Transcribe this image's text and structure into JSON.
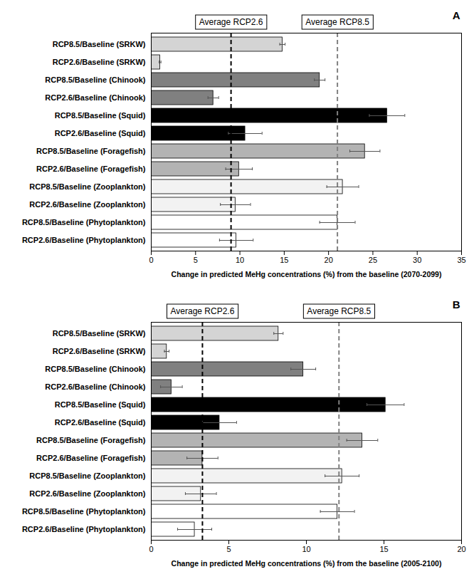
{
  "chart_data": [
    {
      "type": "bar",
      "orientation": "horizontal",
      "title": "A",
      "x_label": "Change in predicted MeHg concentrations (%) from the baseline (2070-2099)",
      "categories": [
        "RCP8.5/Baseline (SRKW)",
        "RCP2.6/Baseline (SRKW)",
        "RCP8.5/Baseline (Chinook)",
        "RCP2.6/Baseline (Chinook)",
        "RCP8.5/Baseline (Squid)",
        "RCP2.6/Baseline (Squid)",
        "RCP8.5/Baseline (Foragefish)",
        "RCP2.6/Baseline (Foragefish)",
        "RCP8.5/Baseline (Zooplankton)",
        "RCP2.6/Baseline (Zooplankton)",
        "RCP8.5/Baseline (Phytoplankton)",
        "RCP2.6/Baseline (Phytoplankton)"
      ],
      "values": [
        14.8,
        1.0,
        19.0,
        7.0,
        26.6,
        10.6,
        24.1,
        9.9,
        21.6,
        9.5,
        21.0,
        9.6
      ],
      "errors": [
        0.3,
        0.1,
        0.6,
        0.6,
        2.0,
        1.9,
        1.7,
        1.5,
        1.8,
        1.7,
        2.0,
        1.9
      ],
      "colors": [
        "#d4d4d4",
        "#d4d4d4",
        "#808080",
        "#808080",
        "#000000",
        "#000000",
        "#b3b3b3",
        "#b3b3b3",
        "#f2f2f2",
        "#f2f2f2",
        "#ffffff",
        "#ffffff"
      ],
      "xlim": [
        0,
        35
      ],
      "xticks": [
        0,
        5,
        10,
        15,
        20,
        25,
        30,
        35
      ],
      "reference_lines": [
        {
          "label": "Average RCP2.6",
          "value": 9.0,
          "color": "#000000",
          "line_style": "dashed"
        },
        {
          "label": "Average RCP8.5",
          "value": 21.0,
          "color": "#808080",
          "line_style": "dashed"
        }
      ]
    },
    {
      "type": "bar",
      "orientation": "horizontal",
      "title": "B",
      "x_label": "Change in predicted MeHg concentrations (%) from the baseline (2005-2100)",
      "categories": [
        "RCP8.5/Baseline (SRKW)",
        "RCP2.6/Baseline (SRKW)",
        "RCP8.5/Baseline (Chinook)",
        "RCP2.6/Baseline (Chinook)",
        "RCP8.5/Baseline (Squid)",
        "RCP2.6/Baseline (Squid)",
        "RCP8.5/Baseline (Foragefish)",
        "RCP2.6/Baseline (Foragefish)",
        "RCP8.5/Baseline (Zooplankton)",
        "RCP2.6/Baseline (Zooplankton)",
        "RCP8.5/Baseline (Phytoplankton)",
        "RCP2.6/Baseline (Phytoplankton)"
      ],
      "values": [
        8.2,
        1.0,
        9.8,
        1.3,
        15.1,
        4.4,
        13.6,
        3.3,
        12.3,
        3.2,
        12.0,
        2.8
      ],
      "errors": [
        0.3,
        0.15,
        0.8,
        0.7,
        1.2,
        1.1,
        1.0,
        1.0,
        1.1,
        1.0,
        1.1,
        1.1
      ],
      "colors": [
        "#d4d4d4",
        "#d4d4d4",
        "#808080",
        "#808080",
        "#000000",
        "#000000",
        "#b3b3b3",
        "#b3b3b3",
        "#f2f2f2",
        "#f2f2f2",
        "#ffffff",
        "#ffffff"
      ],
      "xlim": [
        0,
        20
      ],
      "xticks": [
        0,
        5,
        10,
        15,
        20
      ],
      "reference_lines": [
        {
          "label": "Average RCP2.6",
          "value": 3.3,
          "color": "#000000",
          "line_style": "dashed"
        },
        {
          "label": "Average RCP8.5",
          "value": 12.1,
          "color": "#808080",
          "line_style": "dashed"
        }
      ]
    }
  ]
}
